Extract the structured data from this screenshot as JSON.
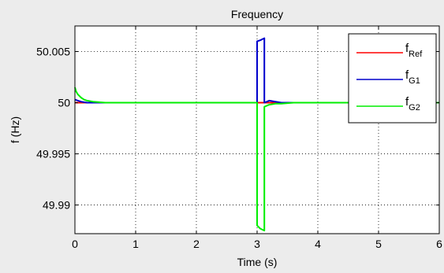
{
  "chart_data": {
    "type": "line",
    "title": "Frequency",
    "xlabel": "Time (s)",
    "ylabel": "f (Hz)",
    "xlim": [
      0,
      6
    ],
    "ylim": [
      49.9872,
      50.0075
    ],
    "xticks": [
      {
        "value": 0,
        "label": "0"
      },
      {
        "value": 1,
        "label": "1"
      },
      {
        "value": 2,
        "label": "2"
      },
      {
        "value": 3,
        "label": "3"
      },
      {
        "value": 4,
        "label": "4"
      },
      {
        "value": 5,
        "label": "5"
      },
      {
        "value": 6,
        "label": "6"
      }
    ],
    "yticks": [
      {
        "value": 49.99,
        "label": "49.99"
      },
      {
        "value": 49.995,
        "label": "49.995"
      },
      {
        "value": 50,
        "label": "50"
      },
      {
        "value": 50.005,
        "label": "50.005"
      }
    ],
    "grid": true,
    "legend_position": "top-right",
    "series": [
      {
        "name": "f_Ref",
        "legend_main": "f",
        "legend_sub": "Ref",
        "color": "#ff0000",
        "x": [
          0,
          6
        ],
        "y": [
          50,
          50
        ]
      },
      {
        "name": "f_G1",
        "legend_main": "f",
        "legend_sub": "G1",
        "color": "#0000cc",
        "x": [
          0,
          0.05,
          0.1,
          0.15,
          0.2,
          0.3,
          0.4,
          0.5,
          0.6,
          3.0,
          3.0,
          3.05,
          3.12,
          3.12,
          3.2,
          3.3,
          3.4,
          3.6,
          6
        ],
        "y": [
          50.0003,
          50.0002,
          50.0001,
          50.00005,
          50.0,
          50.0,
          50.0,
          50.0,
          50.0,
          50.0,
          50.006,
          50.0061,
          50.0063,
          50.0,
          50.0002,
          50.0001,
          50.0,
          50.0,
          50.0
        ]
      },
      {
        "name": "f_G2",
        "legend_main": "f",
        "legend_sub": "G2",
        "color": "#00ee00",
        "x": [
          0,
          0.02,
          0.05,
          0.1,
          0.15,
          0.2,
          0.3,
          0.4,
          0.5,
          0.6,
          3.0,
          3.0,
          3.05,
          3.12,
          3.12,
          3.2,
          3.3,
          3.4,
          3.6,
          3.9,
          6
        ],
        "y": [
          50.0015,
          50.0011,
          50.0008,
          50.0005,
          50.0003,
          50.0002,
          50.0001,
          50.00005,
          50.0,
          50.0,
          50.0,
          49.988,
          49.9877,
          49.9875,
          49.9996,
          49.9998,
          49.9999,
          49.9999,
          50.0,
          50.0,
          50.0
        ]
      }
    ]
  }
}
